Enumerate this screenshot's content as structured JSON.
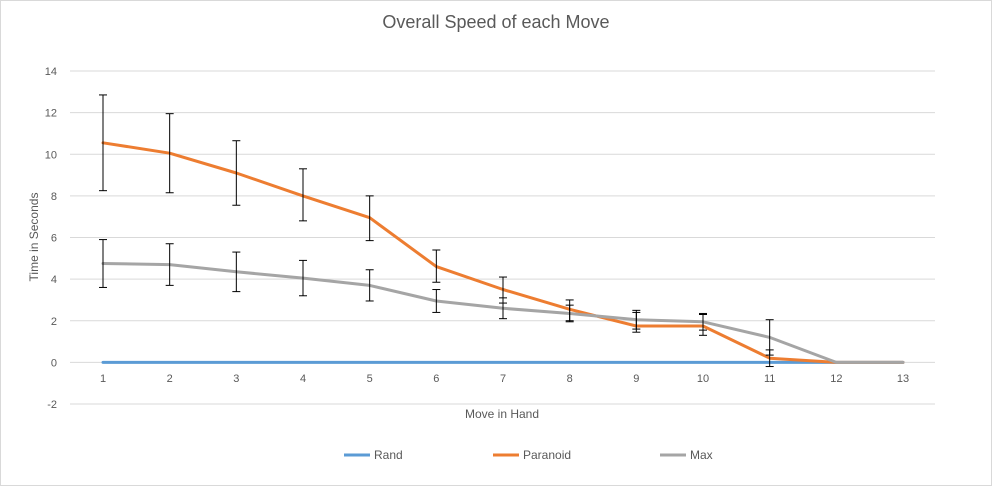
{
  "chart_data": {
    "type": "line",
    "title": "Overall Speed of each Move",
    "xlabel": "Move in Hand",
    "ylabel": "Time in Seconds",
    "x": [
      1,
      2,
      3,
      4,
      5,
      6,
      7,
      8,
      9,
      10,
      11,
      12,
      13
    ],
    "x_ticks": [
      "1",
      "2",
      "3",
      "4",
      "5",
      "6",
      "7",
      "8",
      "9",
      "10",
      "11",
      "12",
      "13"
    ],
    "ylim": [
      -2,
      14
    ],
    "y_ticks": [
      "-2",
      "0",
      "2",
      "4",
      "6",
      "8",
      "10",
      "12",
      "14"
    ],
    "grid": true,
    "legend": "bottom",
    "series": [
      {
        "name": "Rand",
        "color": "#5b9bd5",
        "values": [
          0,
          0,
          0,
          0,
          0,
          0,
          0,
          0,
          0,
          0,
          0,
          0,
          0
        ],
        "err_low": [],
        "err_high": []
      },
      {
        "name": "Paranoid",
        "color": "#ed7d31",
        "values": [
          10.55,
          10.05,
          9.1,
          8.0,
          6.95,
          4.6,
          3.5,
          2.55,
          1.75,
          1.75,
          0.2,
          0,
          0
        ],
        "err_low": [
          8.25,
          8.15,
          7.55,
          6.8,
          5.85,
          3.85,
          2.85,
          2.0,
          1.45,
          1.3,
          -0.2,
          null,
          null
        ],
        "err_high": [
          12.85,
          11.95,
          10.65,
          9.3,
          8.0,
          5.4,
          4.1,
          3.0,
          2.4,
          2.3,
          0.6,
          null,
          null
        ]
      },
      {
        "name": "Max",
        "color": "#a5a5a5",
        "values": [
          4.75,
          4.7,
          4.35,
          4.05,
          3.7,
          2.95,
          2.6,
          2.35,
          2.05,
          1.95,
          1.2,
          0,
          0
        ],
        "err_low": [
          3.6,
          3.7,
          3.4,
          3.2,
          2.95,
          2.4,
          2.1,
          1.95,
          1.6,
          1.55,
          0.35,
          null,
          null
        ],
        "err_high": [
          5.9,
          5.7,
          5.3,
          4.9,
          4.45,
          3.5,
          3.1,
          2.75,
          2.5,
          2.35,
          2.05,
          null,
          null
        ]
      }
    ]
  }
}
